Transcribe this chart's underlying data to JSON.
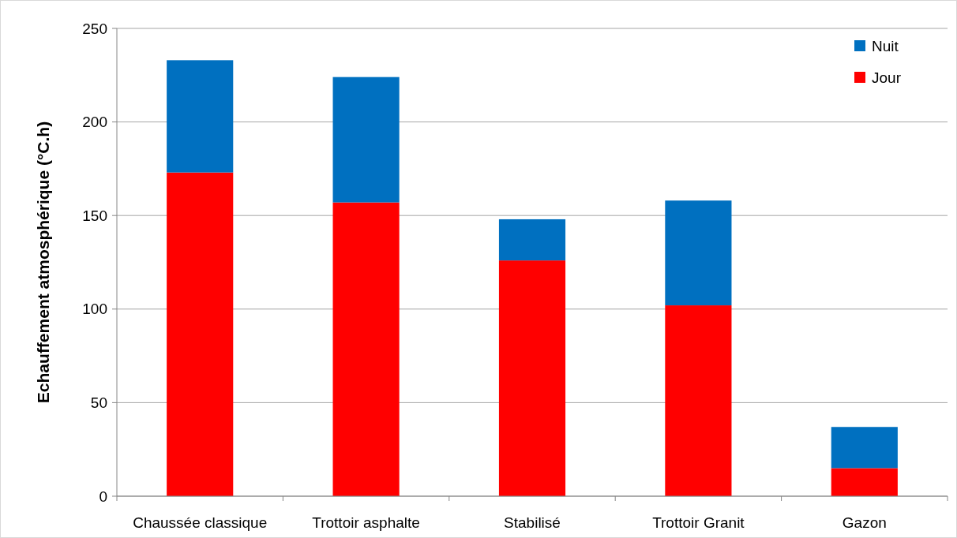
{
  "chart_data": {
    "type": "bar",
    "stacked": true,
    "ylabel": "Echauffement atmosphérique (°C.h)",
    "categories": [
      "Chaussée classique",
      "Trottoir asphalte",
      "Stabilisé",
      "Trottoir Granit",
      "Gazon"
    ],
    "series": [
      {
        "name": "Jour",
        "color": "#ff0000",
        "values": [
          173,
          157,
          126,
          102,
          15
        ]
      },
      {
        "name": "Nuit",
        "color": "#0070c0",
        "values": [
          60,
          67,
          22,
          56,
          22
        ]
      }
    ],
    "ylim": [
      0,
      250
    ],
    "yticks": [
      0,
      50,
      100,
      150,
      200,
      250
    ],
    "grid": "y",
    "legend": "top right"
  }
}
